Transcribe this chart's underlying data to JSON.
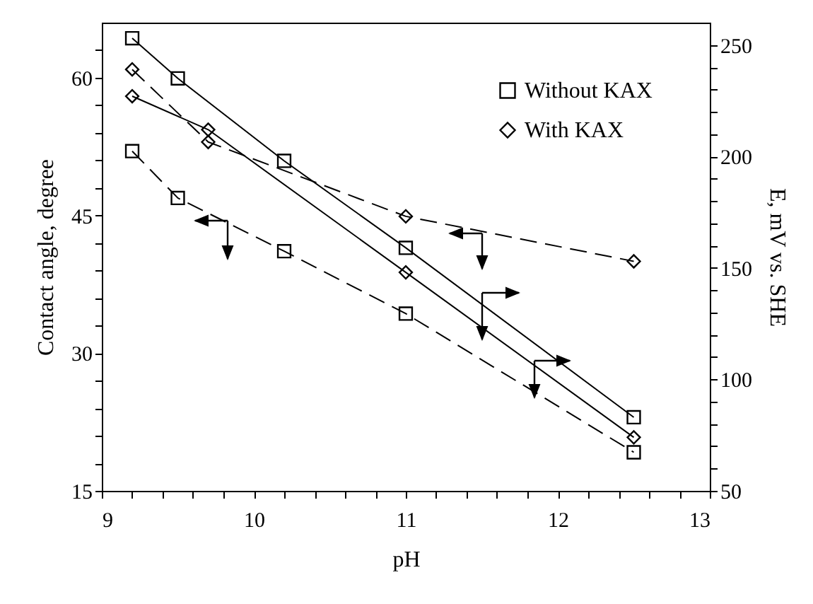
{
  "chart_data": {
    "type": "line",
    "xlabel": "pH",
    "ylabel": "Contact angle, degree",
    "y2label": "E, mV vs. SHE",
    "xlim": [
      9,
      13
    ],
    "xticks": [
      9,
      {
        "value": 9.2,
        "label": null
      },
      {
        "value": 9.4,
        "label": null
      },
      {
        "value": 9.6,
        "label": null
      },
      {
        "value": 9.8,
        "label": null
      },
      10,
      {
        "value": 10.2,
        "label": null
      },
      {
        "value": 10.4,
        "label": null
      },
      {
        "value": 10.6,
        "label": null
      },
      {
        "value": 10.8,
        "label": null
      },
      11,
      {
        "value": 11.2,
        "label": null
      },
      {
        "value": 11.4,
        "label": null
      },
      {
        "value": 11.6,
        "label": null
      },
      {
        "value": 11.8,
        "label": null
      },
      12,
      {
        "value": 12.2,
        "label": null
      },
      {
        "value": 12.4,
        "label": null
      },
      {
        "value": 12.6,
        "label": null
      },
      {
        "value": 12.8,
        "label": null
      },
      13
    ],
    "ylim": [
      15,
      66
    ],
    "yticks": [
      15,
      {
        "value": 18,
        "label": null
      },
      {
        "value": 21,
        "label": null
      },
      {
        "value": 24,
        "label": null
      },
      {
        "value": 27,
        "label": null
      },
      30,
      {
        "value": 33,
        "label": null
      },
      {
        "value": 36,
        "label": null
      },
      {
        "value": 39,
        "label": null
      },
      {
        "value": 42,
        "label": null
      },
      45,
      {
        "value": 48,
        "label": null
      },
      {
        "value": 51,
        "label": null
      },
      {
        "value": 54,
        "label": null
      },
      {
        "value": 57,
        "label": null
      },
      60,
      {
        "value": 63,
        "label": null
      }
    ],
    "y2lim": [
      50,
      260
    ],
    "y2ticks": [
      50,
      {
        "value": 60,
        "label": null
      },
      {
        "value": 70,
        "label": null
      },
      {
        "value": 80,
        "label": null
      },
      {
        "value": 90,
        "label": null
      },
      100,
      {
        "value": 110,
        "label": null
      },
      {
        "value": 120,
        "label": null
      },
      {
        "value": 130,
        "label": null
      },
      {
        "value": 140,
        "label": null
      },
      150,
      {
        "value": 160,
        "label": null
      },
      {
        "value": 170,
        "label": null
      },
      {
        "value": 180,
        "label": null
      },
      {
        "value": 190,
        "label": null
      },
      200,
      {
        "value": 210,
        "label": null
      },
      {
        "value": 220,
        "label": null
      },
      {
        "value": 230,
        "label": null
      },
      {
        "value": 240,
        "label": null
      },
      250
    ],
    "grid": false,
    "legend": "top right",
    "series": [
      {
        "x": [
          9.2,
          9.5,
          10.2,
          11,
          12.5
        ],
        "values": [
          52.0,
          46.9,
          41.1,
          34.3,
          19.2
        ],
        "color": "#000000",
        "marker": "square",
        "line_style": "dashed"
      },
      {
        "x": [
          9.2,
          9.7,
          11,
          12.5
        ],
        "values": [
          60.9,
          53.0,
          44.9,
          40.0
        ],
        "color": "#000000",
        "marker": "diamond",
        "line_style": "dashed"
      },
      {
        "name": "Without KAX",
        "axis": "y2",
        "x": [
          9.2,
          9.5,
          10.2,
          11,
          12.5
        ],
        "values": [
          253,
          235,
          198,
          159,
          83
        ],
        "color": "#000000",
        "marker": "square",
        "line_style": "solid"
      },
      {
        "name": "With KAX",
        "axis": "y2",
        "x": [
          9.2,
          9.7,
          11,
          12.5
        ],
        "values": [
          227,
          212,
          148,
          74
        ],
        "color": "#000000",
        "marker": "diamond",
        "line_style": "solid"
      }
    ]
  }
}
